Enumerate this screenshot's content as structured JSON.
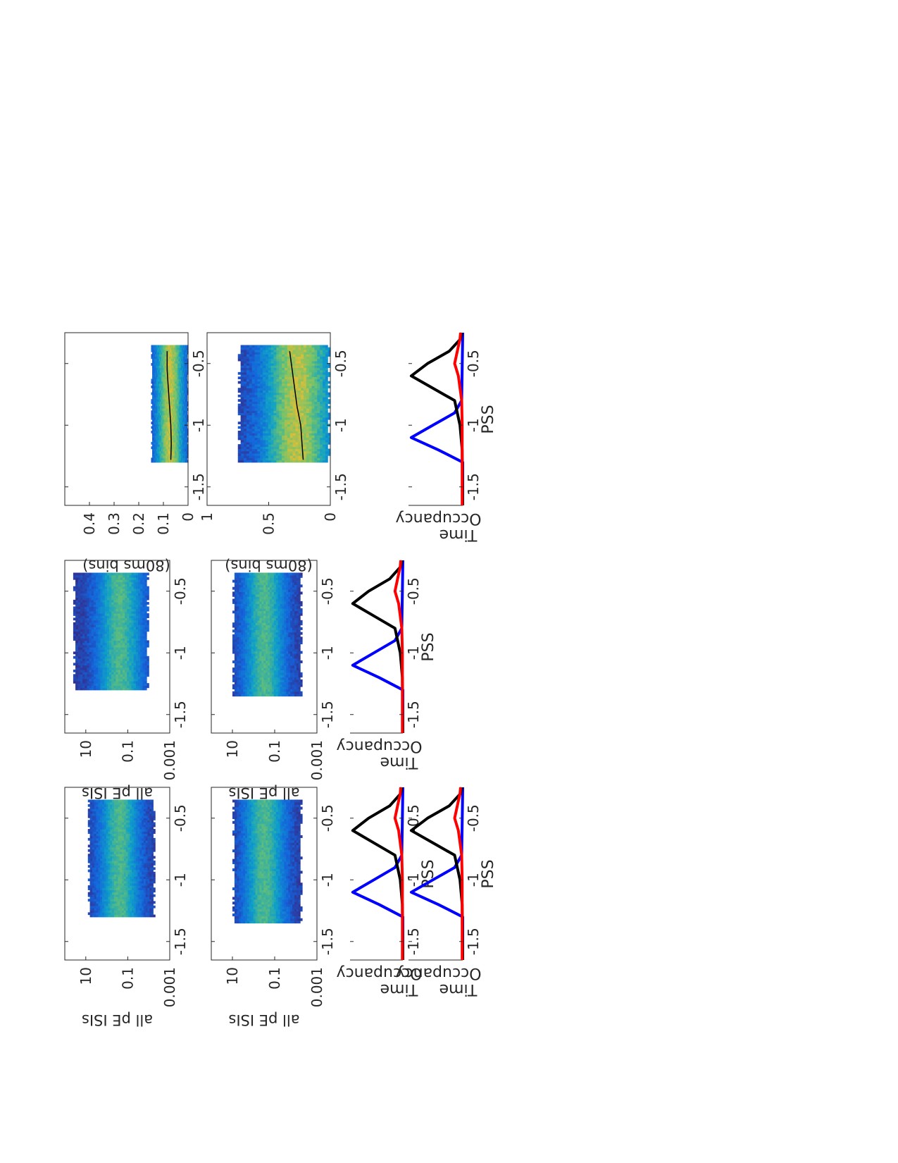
{
  "colors": {
    "bg": "#ffffff",
    "axis": "#262626",
    "heat_low": "#3b3bb8",
    "heat_mid": "#23a8b8",
    "heat_high": "#f9e43a",
    "blue": "#0000ff",
    "black": "#000000",
    "red": "#ff0000"
  },
  "labels": {
    "isi_ylabel": "all pE ISIs",
    "bins_ylabel": "(80ms bins)",
    "occ_ylabel_line1": "Time",
    "occ_ylabel_line2": "Occupancy",
    "pss_xlabel": "PSS"
  },
  "chart_data": [
    {
      "id": "isi-heatmap-1",
      "type": "heatmap",
      "xlabel": "",
      "ylabel": "all pE ISIs",
      "xlim": [
        -1.65,
        -0.25
      ],
      "x_ticks": [
        "-1.5",
        "-1",
        "-0.5"
      ],
      "ylim_log10": [
        -3,
        2
      ],
      "y_scale": "log",
      "y_ticks": [
        "10",
        "0.1",
        "0.001"
      ],
      "data_x_range": [
        -1.3,
        -0.35
      ],
      "density_band_log10_y": [
        -2.3,
        0.9
      ],
      "density_peak_log10_y": -0.6
    },
    {
      "id": "isi-heatmap-2",
      "type": "heatmap",
      "xlabel": "",
      "ylabel": "all pE ISIs",
      "xlim": [
        -1.65,
        -0.25
      ],
      "x_ticks": [
        "-1.5",
        "-1",
        "-0.5"
      ],
      "ylim_log10": [
        -3,
        2
      ],
      "y_scale": "log",
      "y_ticks": [
        "10",
        "0.1",
        "0.001"
      ],
      "data_x_range": [
        -1.35,
        -0.35
      ],
      "density_band_log10_y": [
        -2.3,
        1.0
      ],
      "density_peak_log10_y": -0.5
    },
    {
      "id": "isi-heatmap-3",
      "type": "heatmap",
      "xlabel": "",
      "ylabel": "all pE ISIs",
      "xlim": [
        -1.65,
        -0.25
      ],
      "x_ticks": [
        "-1.5",
        "-1",
        "-0.5"
      ],
      "ylim_log10": [
        -3,
        2
      ],
      "y_scale": "log",
      "y_ticks": [
        "10",
        "0.1",
        "0.001"
      ],
      "data_x_range": [
        -1.3,
        -0.35
      ],
      "density_band_log10_y": [
        -2.0,
        1.6
      ],
      "density_peak_log10_y": -0.6
    },
    {
      "id": "isi-heatmap-4",
      "type": "heatmap",
      "xlabel": "",
      "ylabel": "all pE ISIs",
      "xlim": [
        -1.65,
        -0.25
      ],
      "x_ticks": [
        "-1.5",
        "-1",
        "-0.5"
      ],
      "ylim_log10": [
        -3,
        2
      ],
      "y_scale": "log",
      "y_ticks": [
        "10",
        "0.1",
        "0.001"
      ],
      "data_x_range": [
        -1.35,
        -0.35
      ],
      "density_band_log10_y": [
        -2.3,
        1.0
      ],
      "density_peak_log10_y": -0.5
    },
    {
      "id": "bins-heatmap-1",
      "type": "heatmap",
      "xlabel": "",
      "ylabel": "(80ms bins)",
      "xlim": [
        -1.65,
        -0.25
      ],
      "x_ticks": [
        "-1.5",
        "-1",
        "-0.5"
      ],
      "ylim": [
        0,
        0.5
      ],
      "y_ticks": [
        "0.4",
        "0.3",
        "0.2",
        "0.1",
        "0"
      ],
      "data_x_range": [
        -1.3,
        -0.35
      ],
      "density_band_y": [
        0.0,
        0.15
      ],
      "mean_line": {
        "x": [
          -1.28,
          -1.15,
          -1.0,
          -0.85,
          -0.7,
          -0.55,
          -0.4
        ],
        "y": [
          0.07,
          0.068,
          0.07,
          0.075,
          0.08,
          0.085,
          0.085
        ]
      }
    },
    {
      "id": "bins-heatmap-2",
      "type": "heatmap",
      "xlabel": "",
      "ylabel": "(80ms bins)",
      "xlim": [
        -1.65,
        -0.25
      ],
      "x_ticks": [
        "-1.5",
        "-1",
        "-0.5"
      ],
      "ylim": [
        0,
        1
      ],
      "y_ticks": [
        "1",
        "0.5",
        "0"
      ],
      "data_x_range": [
        -1.3,
        -0.35
      ],
      "density_band_y": [
        0.0,
        0.75
      ],
      "mean_line": {
        "x": [
          -1.28,
          -1.15,
          -1.0,
          -0.85,
          -0.7,
          -0.55,
          -0.4
        ],
        "y": [
          0.22,
          0.23,
          0.24,
          0.27,
          0.29,
          0.31,
          0.33
        ]
      }
    },
    {
      "id": "occupancy-1",
      "type": "line",
      "xlabel": "PSS",
      "ylabel": "Time Occupancy",
      "xlim": [
        -1.65,
        -0.25
      ],
      "x_ticks": [
        "-1.5",
        "-1",
        "-0.5"
      ],
      "ylim": [
        0,
        1
      ],
      "series": [
        {
          "color": "#0000ff",
          "x": [
            -1.65,
            -1.3,
            -1.2,
            -1.1,
            -1.0,
            -0.9,
            -0.8,
            -0.25
          ],
          "y": [
            0,
            0,
            0.45,
            0.95,
            0.55,
            0.15,
            0.02,
            0
          ]
        },
        {
          "color": "#000000",
          "x": [
            -1.65,
            -1.2,
            -1.0,
            -0.8,
            -0.7,
            -0.6,
            -0.5,
            -0.4,
            -0.3,
            -0.25
          ],
          "y": [
            0,
            0.01,
            0.05,
            0.15,
            0.55,
            0.95,
            0.65,
            0.25,
            0.04,
            0.02
          ]
        },
        {
          "color": "#ff0000",
          "x": [
            -1.65,
            -1.0,
            -0.8,
            -0.6,
            -0.5,
            -0.4,
            -0.3,
            -0.25
          ],
          "y": [
            0.01,
            0.01,
            0.02,
            0.08,
            0.15,
            0.1,
            0.05,
            0.04
          ]
        }
      ]
    },
    {
      "id": "occupancy-2",
      "type": "line",
      "xlabel": "PSS",
      "ylabel": "Time Occupancy",
      "xlim": [
        -1.65,
        -0.25
      ],
      "x_ticks": [
        "-1.5",
        "-1",
        "-0.5"
      ],
      "ylim": [
        0,
        1
      ],
      "series": [
        {
          "color": "#0000ff",
          "x": [
            -1.65,
            -1.3,
            -1.2,
            -1.1,
            -1.0,
            -0.9,
            -0.8,
            -0.25
          ],
          "y": [
            0,
            0,
            0.45,
            0.95,
            0.55,
            0.15,
            0.02,
            0
          ]
        },
        {
          "color": "#000000",
          "x": [
            -1.65,
            -1.2,
            -1.0,
            -0.8,
            -0.7,
            -0.6,
            -0.5,
            -0.4,
            -0.3,
            -0.25
          ],
          "y": [
            0,
            0.01,
            0.05,
            0.15,
            0.55,
            0.95,
            0.65,
            0.25,
            0.04,
            0.02
          ]
        },
        {
          "color": "#ff0000",
          "x": [
            -1.65,
            -1.0,
            -0.8,
            -0.6,
            -0.5,
            -0.4,
            -0.3,
            -0.25
          ],
          "y": [
            0.01,
            0.01,
            0.02,
            0.08,
            0.15,
            0.1,
            0.05,
            0.04
          ]
        }
      ]
    },
    {
      "id": "occupancy-3",
      "type": "line",
      "xlabel": "PSS",
      "ylabel": "Time Occupancy",
      "xlim": [
        -1.65,
        -0.25
      ],
      "x_ticks": [
        "-1.5",
        "-1",
        "-0.5"
      ],
      "ylim": [
        0,
        1
      ],
      "series": [
        {
          "color": "#0000ff",
          "x": [
            -1.65,
            -1.3,
            -1.2,
            -1.1,
            -1.0,
            -0.9,
            -0.8,
            -0.25
          ],
          "y": [
            0,
            0,
            0.45,
            0.95,
            0.55,
            0.15,
            0.02,
            0
          ]
        },
        {
          "color": "#000000",
          "x": [
            -1.65,
            -1.2,
            -1.0,
            -0.8,
            -0.7,
            -0.6,
            -0.5,
            -0.4,
            -0.3,
            -0.25
          ],
          "y": [
            0,
            0.01,
            0.05,
            0.15,
            0.55,
            0.95,
            0.65,
            0.25,
            0.04,
            0.02
          ]
        },
        {
          "color": "#ff0000",
          "x": [
            -1.65,
            -1.0,
            -0.8,
            -0.6,
            -0.5,
            -0.4,
            -0.3,
            -0.25
          ],
          "y": [
            0.01,
            0.01,
            0.02,
            0.08,
            0.15,
            0.1,
            0.05,
            0.04
          ]
        }
      ]
    },
    {
      "id": "occupancy-4",
      "type": "line",
      "xlabel": "PSS",
      "ylabel": "Time Occupancy",
      "xlim": [
        -1.65,
        -0.25
      ],
      "x_ticks": [
        "-1.5",
        "-1",
        "-0.5"
      ],
      "ylim": [
        0,
        1
      ],
      "series": [
        {
          "color": "#0000ff",
          "x": [
            -1.65,
            -1.3,
            -1.2,
            -1.1,
            -1.0,
            -0.9,
            -0.8,
            -0.25
          ],
          "y": [
            0,
            0,
            0.45,
            0.95,
            0.55,
            0.15,
            0.02,
            0
          ]
        },
        {
          "color": "#000000",
          "x": [
            -1.65,
            -1.2,
            -1.0,
            -0.8,
            -0.7,
            -0.6,
            -0.5,
            -0.4,
            -0.3,
            -0.25
          ],
          "y": [
            0,
            0.01,
            0.05,
            0.15,
            0.55,
            0.95,
            0.65,
            0.25,
            0.04,
            0.02
          ]
        },
        {
          "color": "#ff0000",
          "x": [
            -1.65,
            -1.0,
            -0.8,
            -0.6,
            -0.5,
            -0.4,
            -0.3,
            -0.25
          ],
          "y": [
            0.01,
            0.01,
            0.02,
            0.08,
            0.15,
            0.1,
            0.05,
            0.04
          ]
        }
      ]
    }
  ]
}
